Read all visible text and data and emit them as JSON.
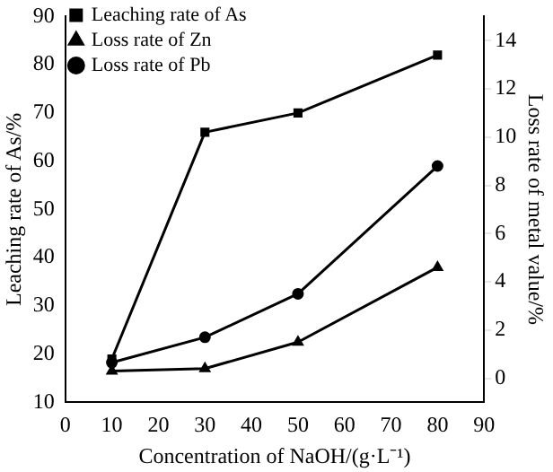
{
  "chart_data": {
    "type": "line",
    "xlabel": "Concentration of NaOH/(g·L⁻¹)",
    "ylabel": "Leaching rate of As/%",
    "y2label": "Loss rate of metal value/%",
    "xlim": [
      0,
      90
    ],
    "xticks": [
      0,
      10,
      20,
      30,
      40,
      50,
      60,
      70,
      80,
      90
    ],
    "ylim": [
      10,
      90
    ],
    "yticks": [
      10,
      20,
      30,
      40,
      50,
      60,
      70,
      80,
      90
    ],
    "y2lim": [
      -1,
      15
    ],
    "y2ticks": [
      0,
      2,
      4,
      6,
      8,
      10,
      12,
      14
    ],
    "legend": "top left",
    "grid": false,
    "line_style": "solid",
    "series": [
      {
        "name": "Leaching rate of As",
        "color": "#000000",
        "marker": "square",
        "x": [
          10,
          30,
          50,
          80
        ],
        "values": [
          19,
          66,
          70,
          82
        ]
      },
      {
        "name": "Loss rate of Zn",
        "color": "#000000",
        "marker": "triangle",
        "axis": "y2",
        "x": [
          10,
          30,
          50,
          80
        ],
        "values": [
          0.3,
          0.4,
          1.5,
          4.6
        ]
      },
      {
        "name": "Loss rate of Pb",
        "color": "#000000",
        "marker": "circle",
        "axis": "y2",
        "x": [
          10,
          30,
          50,
          80
        ],
        "values": [
          0.65,
          1.7,
          3.5,
          8.8
        ]
      }
    ]
  }
}
